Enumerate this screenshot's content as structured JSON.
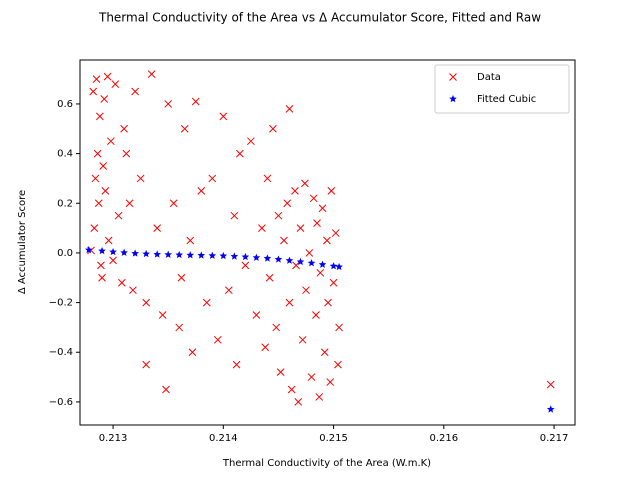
{
  "chart_data": {
    "type": "scatter",
    "title": "Thermal Conductivity of the Area vs Δ Accumulator Score, Fitted and Raw",
    "xlabel": "Thermal Conductivity of the Area (W.m.K)",
    "ylabel": "Δ Accumulator Score",
    "xlim": [
      0.2127,
      0.21719
    ],
    "ylim": [
      -0.693,
      0.777
    ],
    "xticks": [
      0.213,
      0.214,
      0.215,
      0.216,
      0.217
    ],
    "yticks": [
      {
        "value": -0.6,
        "label": "−0.6"
      },
      {
        "value": -0.4,
        "label": "−0.4"
      },
      {
        "value": -0.2,
        "label": "−0.2"
      },
      {
        "value": 0,
        "label": "0.0"
      },
      0.2,
      0.4,
      0.6
    ],
    "legend": "upper right",
    "series": [
      {
        "name": "Data",
        "color": "#ff0000",
        "marker": "x",
        "x": [
          0.2128,
          0.21282,
          0.21285,
          0.21288,
          0.21286,
          0.21284,
          0.21287,
          0.21283,
          0.21289,
          0.2129,
          0.21292,
          0.21295,
          0.21298,
          0.21291,
          0.21293,
          0.21296,
          0.213,
          0.21302,
          0.21305,
          0.21308,
          0.2131,
          0.21312,
          0.21315,
          0.21318,
          0.2132,
          0.21325,
          0.2133,
          0.21335,
          0.2133,
          0.2134,
          0.21345,
          0.2135,
          0.21348,
          0.21355,
          0.2136,
          0.21365,
          0.21362,
          0.2137,
          0.21372,
          0.21375,
          0.2138,
          0.21385,
          0.2139,
          0.21395,
          0.214,
          0.21405,
          0.2141,
          0.21415,
          0.21412,
          0.2142,
          0.21425,
          0.2143,
          0.21435,
          0.21438,
          0.2144,
          0.21442,
          0.21445,
          0.21448,
          0.2145,
          0.21452,
          0.21455,
          0.21458,
          0.2146,
          0.2146,
          0.21462,
          0.21465,
          0.21466,
          0.21468,
          0.2147,
          0.21472,
          0.21474,
          0.21475,
          0.21478,
          0.2148,
          0.21482,
          0.21484,
          0.21485,
          0.21487,
          0.21488,
          0.2149,
          0.21492,
          0.21494,
          0.21495,
          0.21497,
          0.21498,
          0.215,
          0.21502,
          0.21504,
          0.21505,
          0.21697
        ],
        "values": [
          0.01,
          0.65,
          0.7,
          0.55,
          0.4,
          0.3,
          0.2,
          0.1,
          -0.05,
          -0.1,
          0.62,
          0.71,
          0.45,
          0.35,
          0.25,
          0.05,
          -0.03,
          0.68,
          0.15,
          -0.12,
          0.5,
          0.4,
          0.2,
          -0.15,
          0.65,
          0.3,
          -0.2,
          0.72,
          -0.45,
          0.1,
          -0.25,
          0.6,
          -0.55,
          0.2,
          -0.3,
          0.5,
          -0.1,
          0.05,
          -0.4,
          0.61,
          0.25,
          -0.2,
          0.3,
          -0.35,
          0.55,
          -0.15,
          0.15,
          0.4,
          -0.45,
          -0.05,
          0.45,
          -0.25,
          0.1,
          -0.38,
          0.3,
          -0.1,
          0.5,
          -0.3,
          0.15,
          -0.48,
          0.05,
          0.2,
          0.58,
          -0.2,
          -0.55,
          0.25,
          -0.05,
          -0.6,
          0.1,
          -0.35,
          0.28,
          -0.15,
          0,
          -0.5,
          0.22,
          -0.25,
          0.12,
          -0.58,
          -0.08,
          0.18,
          -0.4,
          0.05,
          -0.2,
          -0.52,
          0.25,
          -0.12,
          0.08,
          -0.45,
          -0.3,
          -0.53
        ]
      },
      {
        "name": "Fitted Cubic",
        "color": "#0000ff",
        "marker": "star",
        "x": [
          0.21278,
          0.2129,
          0.213,
          0.2131,
          0.2132,
          0.2133,
          0.2134,
          0.2135,
          0.2136,
          0.2137,
          0.2138,
          0.2139,
          0.214,
          0.2141,
          0.2142,
          0.2143,
          0.2144,
          0.2145,
          0.2146,
          0.2147,
          0.2148,
          0.2149,
          0.215,
          0.21505,
          0.21697
        ],
        "values": [
          0.012,
          0.008,
          0.004,
          0.001,
          -0.002,
          -0.004,
          -0.006,
          -0.007,
          -0.008,
          -0.009,
          -0.01,
          -0.011,
          -0.012,
          -0.014,
          -0.016,
          -0.019,
          -0.022,
          -0.026,
          -0.031,
          -0.036,
          -0.041,
          -0.047,
          -0.053,
          -0.056,
          -0.63
        ]
      }
    ]
  }
}
